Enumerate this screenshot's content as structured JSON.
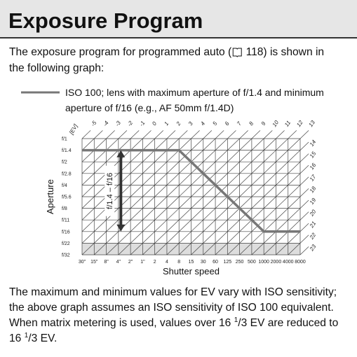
{
  "header": {
    "title": "Exposure Program"
  },
  "intro": {
    "before_icon": "The exposure program for programmed auto (",
    "after_icon": " 118) is shown in",
    "line2": "the following graph:"
  },
  "legend": {
    "line1": "ISO 100; lens with maximum aperture of f/1.4 and minimum",
    "line2": "aperture of f/16 (e.g., AF 50mm f/1.4D)"
  },
  "graph": {
    "ev_label": "[EV]",
    "ev_top": [
      -5,
      -4,
      -3,
      -2,
      -1,
      0,
      1,
      2,
      3,
      4,
      5,
      6,
      7,
      8,
      9,
      10,
      11,
      12,
      13
    ],
    "ev_right": [
      14,
      15,
      16,
      17,
      18,
      19,
      20,
      21,
      22,
      23
    ],
    "apertures": [
      "f/1",
      "f/1.4",
      "f/2",
      "f/2.8",
      "f/4",
      "f/5.6",
      "f/8",
      "f/11",
      "f/16",
      "f/22",
      "f/32"
    ],
    "shutter_speeds": [
      "30\"",
      "15\"",
      "8\"",
      "4\"",
      "2\"",
      "1\"",
      "2",
      "4",
      "8",
      "15",
      "30",
      "60",
      "125",
      "250",
      "500",
      "1000",
      "2000",
      "4000",
      "8000"
    ],
    "y_label": "Aperture",
    "x_label": "Shutter speed",
    "range_label": "f/1.4 – f/16"
  },
  "footer": {
    "line1": "The maximum and minimum values for EV vary with ISO sensitivity;",
    "line2": "the above graph assumes an ISO sensitivity of ISO 100 equivalent.",
    "line3_before": "When matrix metering is used, values over 16 ",
    "line3_sup": "1",
    "line3_after": "/3 EV are reduced to",
    "line4_before": "16 ",
    "line4_sup": "1",
    "line4_after": "/3 EV."
  }
}
